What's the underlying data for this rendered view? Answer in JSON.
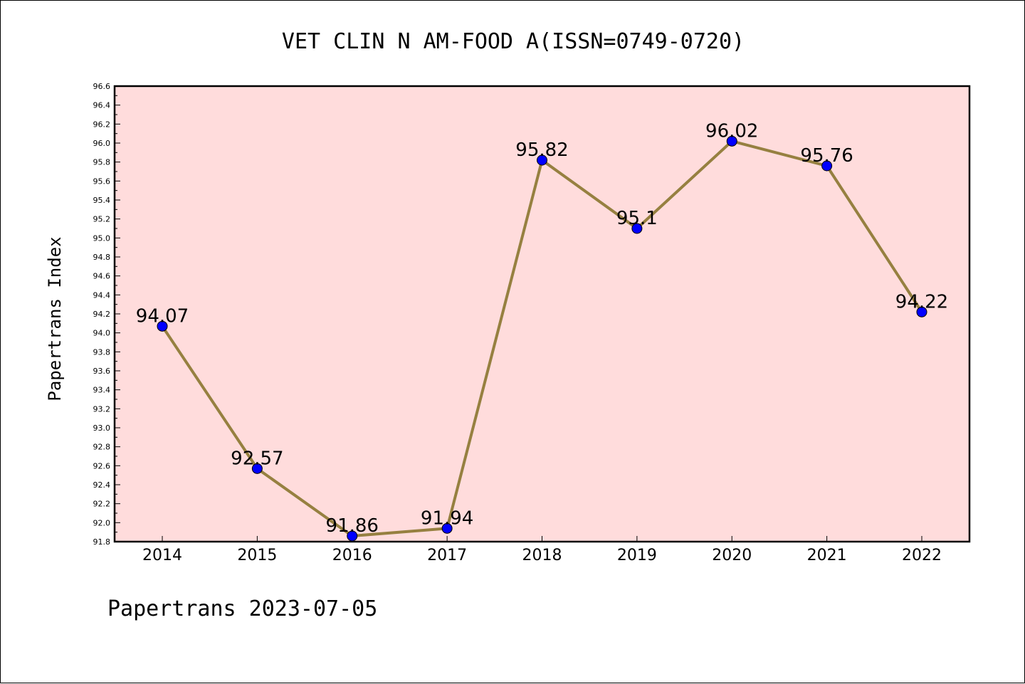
{
  "colors": {
    "plot_background": "#ffdcdc",
    "line": "#968040",
    "marker": "#0000ff",
    "axis": "#000000"
  },
  "chart_data": {
    "type": "line",
    "title": "VET CLIN N AM-FOOD A(ISSN=0749-0720)",
    "xlabel": "",
    "ylabel": "Papertrans Index",
    "footer": "Papertrans 2023-07-05",
    "x": [
      "2014",
      "2015",
      "2016",
      "2017",
      "2018",
      "2019",
      "2020",
      "2021",
      "2022"
    ],
    "series": [
      {
        "values": [
          94.07,
          92.57,
          91.86,
          91.94,
          95.82,
          95.1,
          96.02,
          95.76,
          94.22
        ],
        "labels": [
          "94.07",
          "92.57",
          "91.86",
          "91.94",
          "95.82",
          "95.1",
          "96.02",
          "95.76",
          "94.22"
        ]
      }
    ],
    "ylim": [
      91.8,
      96.6
    ],
    "ytick_step": 0.2,
    "grid": false,
    "legend": "none"
  }
}
